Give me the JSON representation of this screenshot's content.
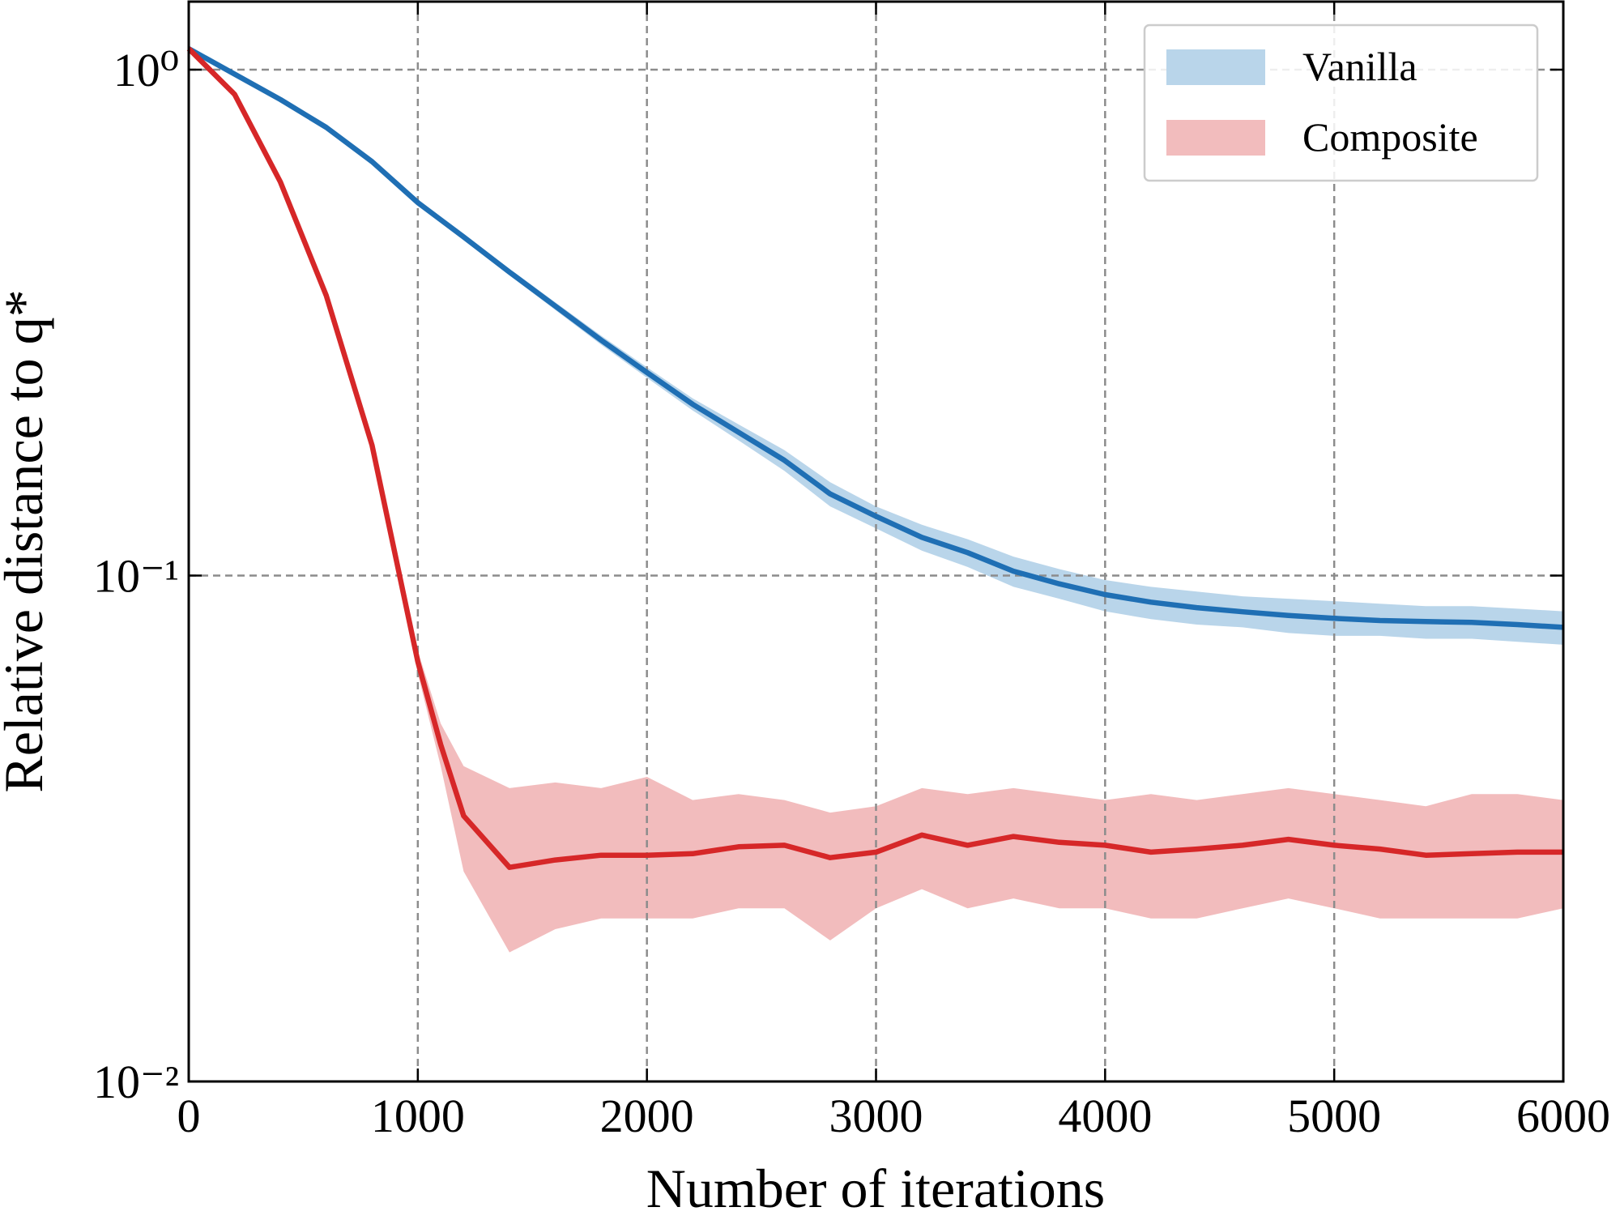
{
  "chart_data": {
    "type": "line",
    "xlabel": "Number of iterations",
    "ylabel": "Relative distance to q*",
    "yscale": "log",
    "grid": true,
    "legend": "upper right",
    "xlim": [
      0,
      6000
    ],
    "ylim": [
      0.01,
      1.363
    ],
    "xticks": [
      0,
      1000,
      2000,
      3000,
      4000,
      5000,
      6000
    ],
    "yticks": [
      {
        "value": 0.01,
        "label": "10⁻²"
      },
      {
        "value": 0.1,
        "label": "10⁻¹"
      },
      {
        "value": 1,
        "label": "10⁰"
      }
    ],
    "x": [
      0,
      200,
      400,
      600,
      800,
      1000,
      1100,
      1200,
      1400,
      1600,
      1800,
      2000,
      2200,
      2400,
      2600,
      2800,
      3000,
      3200,
      3400,
      3600,
      3800,
      4000,
      4200,
      4400,
      4600,
      4800,
      5000,
      5200,
      5400,
      5600,
      5800,
      6000
    ],
    "series": [
      {
        "name": "Vanilla",
        "color": "#1f6fb4",
        "band_color": "#b9d5ea",
        "values": [
          1.1,
          0.98,
          0.873,
          0.769,
          0.658,
          0.546,
          0.505,
          0.467,
          0.398,
          0.341,
          0.292,
          0.252,
          0.218,
          0.192,
          0.169,
          0.145,
          0.131,
          0.119,
          0.111,
          0.102,
          0.0963,
          0.0917,
          0.0886,
          0.0864,
          0.0848,
          0.0834,
          0.0823,
          0.0815,
          0.0811,
          0.0808,
          0.08,
          0.079
        ],
        "upper": [
          1.11,
          0.99,
          0.88,
          0.775,
          0.664,
          0.552,
          0.511,
          0.473,
          0.404,
          0.347,
          0.298,
          0.258,
          0.224,
          0.199,
          0.177,
          0.153,
          0.137,
          0.126,
          0.118,
          0.109,
          0.103,
          0.098,
          0.095,
          0.093,
          0.091,
          0.09,
          0.089,
          0.088,
          0.087,
          0.087,
          0.086,
          0.085
        ],
        "lower": [
          1.09,
          0.97,
          0.866,
          0.763,
          0.652,
          0.54,
          0.499,
          0.461,
          0.392,
          0.335,
          0.286,
          0.246,
          0.212,
          0.185,
          0.161,
          0.137,
          0.124,
          0.112,
          0.104,
          0.095,
          0.09,
          0.085,
          0.082,
          0.08,
          0.079,
          0.077,
          0.076,
          0.076,
          0.075,
          0.075,
          0.074,
          0.073
        ]
      },
      {
        "name": "Composite",
        "color": "#d62728",
        "band_color": "#f2bcbd",
        "values": [
          1.1,
          0.894,
          0.6,
          0.358,
          0.181,
          0.0676,
          0.0463,
          0.0335,
          0.0265,
          0.0274,
          0.028,
          0.028,
          0.0282,
          0.0291,
          0.0293,
          0.0277,
          0.0284,
          0.0307,
          0.0293,
          0.0305,
          0.0297,
          0.0293,
          0.0284,
          0.0288,
          0.0293,
          0.0301,
          0.0293,
          0.0288,
          0.028,
          0.0282,
          0.0284,
          0.0284
        ],
        "upper": [
          1.11,
          0.91,
          0.61,
          0.365,
          0.186,
          0.071,
          0.051,
          0.042,
          0.038,
          0.039,
          0.038,
          0.04,
          0.036,
          0.037,
          0.036,
          0.034,
          0.035,
          0.038,
          0.037,
          0.038,
          0.037,
          0.036,
          0.037,
          0.036,
          0.037,
          0.038,
          0.037,
          0.036,
          0.035,
          0.037,
          0.037,
          0.036
        ],
        "lower": [
          1.09,
          0.88,
          0.59,
          0.35,
          0.176,
          0.064,
          0.042,
          0.026,
          0.018,
          0.02,
          0.021,
          0.021,
          0.021,
          0.022,
          0.022,
          0.019,
          0.022,
          0.024,
          0.022,
          0.023,
          0.022,
          0.022,
          0.021,
          0.021,
          0.022,
          0.023,
          0.022,
          0.021,
          0.021,
          0.021,
          0.021,
          0.022
        ]
      }
    ]
  }
}
